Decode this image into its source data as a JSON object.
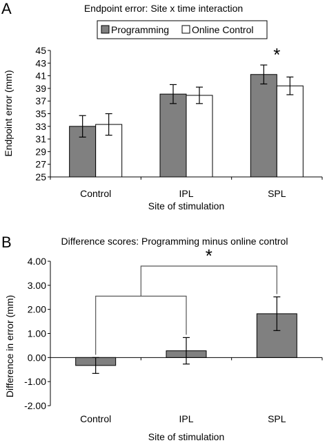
{
  "chart_data": [
    {
      "panel_label": "A",
      "type": "bar",
      "title": "Endpoint error: Site x time interaction",
      "xlabel": "Site of stimulation",
      "ylabel": "Endpoint error (mm)",
      "categories": [
        "Control",
        "IPL",
        "SPL"
      ],
      "ylim": [
        25,
        45
      ],
      "yticks": [
        "25",
        "27",
        "29",
        "31",
        "33",
        "35",
        "37",
        "39",
        "41",
        "43",
        "45"
      ],
      "series": [
        {
          "name": "Programming",
          "values": [
            33.0,
            38.1,
            41.2
          ],
          "errors": [
            1.7,
            1.5,
            1.5
          ],
          "color": "#808080"
        },
        {
          "name": "Online Control",
          "values": [
            33.3,
            37.9,
            39.4
          ],
          "errors": [
            1.7,
            1.3,
            1.4
          ],
          "color": "#ffffff"
        }
      ],
      "annotations": [
        {
          "text": "*",
          "category": "SPL"
        }
      ],
      "legend_position": "top"
    },
    {
      "panel_label": "B",
      "type": "bar",
      "title": "Difference scores: Programming minus online control",
      "xlabel": "Site of stimulation",
      "ylabel": "Difference in  error (mm)",
      "categories": [
        "Control",
        "IPL",
        "SPL"
      ],
      "ylim": [
        -2,
        4
      ],
      "yticks": [
        "-2.00",
        "-1.00",
        "0.00",
        "1.00",
        "2.00",
        "3.00",
        "4.00"
      ],
      "series": [
        {
          "values": [
            -0.33,
            0.28,
            1.82
          ],
          "errors": [
            0.33,
            0.55,
            0.7
          ],
          "color": "#808080"
        }
      ],
      "annotations": [
        {
          "text": "*",
          "type": "bracket",
          "between": [
            "Control",
            "IPL",
            "SPL"
          ]
        }
      ]
    }
  ]
}
